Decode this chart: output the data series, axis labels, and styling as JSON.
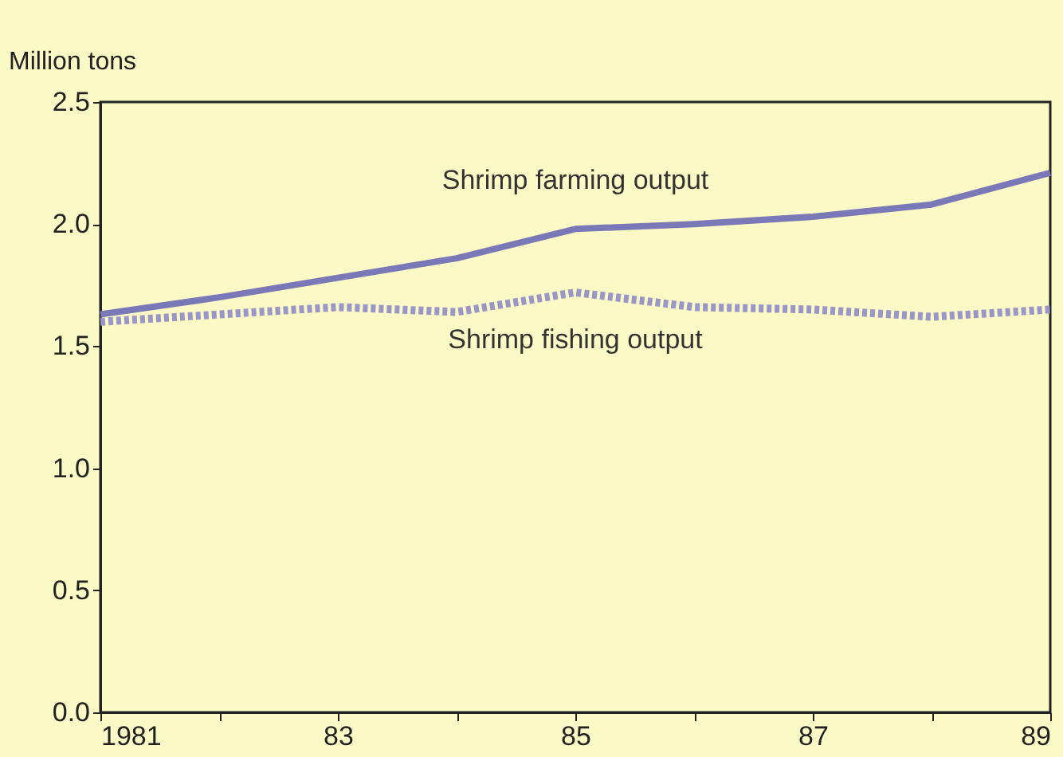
{
  "chart_data": {
    "type": "line",
    "ylabel": "Million tons",
    "x": [
      1981,
      1982,
      1983,
      1984,
      1985,
      1986,
      1987,
      1988,
      1989
    ],
    "series": [
      {
        "name": "Shrimp farming output",
        "color": "#7b78b8",
        "line_style": "solid",
        "values": [
          1.63,
          1.7,
          1.78,
          1.86,
          1.98,
          2.0,
          2.03,
          2.08,
          2.21
        ]
      },
      {
        "name": "Shrimp fishing output",
        "color": "#9a96c8",
        "line_style": "dotted",
        "values": [
          1.6,
          1.63,
          1.66,
          1.64,
          1.72,
          1.66,
          1.65,
          1.62,
          1.65
        ]
      }
    ],
    "xlim": [
      1981,
      1989
    ],
    "xticks": [
      1981,
      {
        "value": 1982,
        "label": null
      },
      {
        "value": 1983,
        "label": "83"
      },
      {
        "value": 1984,
        "label": null
      },
      {
        "value": 1985,
        "label": "85"
      },
      {
        "value": 1986,
        "label": null
      },
      {
        "value": 1987,
        "label": "87"
      },
      {
        "value": 1988,
        "label": null
      },
      {
        "value": 1989,
        "label": "89"
      }
    ],
    "ylim": [
      0,
      2.5
    ],
    "yticks": [
      {
        "value": 0,
        "label": "0.0"
      },
      {
        "value": 0.5,
        "label": "0.5"
      },
      {
        "value": 1,
        "label": "1.0"
      },
      {
        "value": 1.5,
        "label": "1.5"
      },
      {
        "value": 2,
        "label": "2.0"
      },
      {
        "value": 2.5,
        "label": "2.5"
      }
    ],
    "grid": false
  }
}
